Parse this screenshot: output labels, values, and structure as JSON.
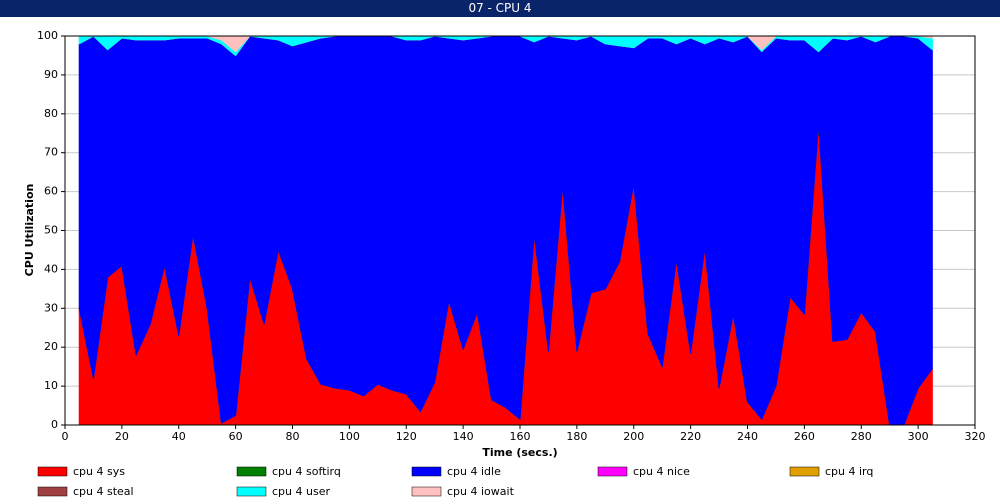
{
  "chart_data": {
    "type": "stacked_area",
    "title": "07 - CPU 4",
    "xlabel": "Time (secs.)",
    "ylabel": "CPU Utilization",
    "xlim": [
      0,
      320
    ],
    "xticks": [
      0,
      20,
      40,
      60,
      80,
      100,
      120,
      140,
      160,
      180,
      200,
      220,
      240,
      260,
      280,
      300,
      320
    ],
    "ylim": [
      0,
      100
    ],
    "yticks": [
      0,
      10,
      20,
      30,
      40,
      50,
      60,
      70,
      80,
      90,
      100
    ],
    "grid": true,
    "x": [
      5,
      10,
      15,
      20,
      25,
      30,
      35,
      40,
      45,
      50,
      55,
      60,
      65,
      70,
      75,
      80,
      85,
      90,
      95,
      100,
      105,
      110,
      115,
      120,
      125,
      130,
      135,
      140,
      145,
      150,
      155,
      160,
      165,
      170,
      175,
      180,
      185,
      190,
      195,
      200,
      205,
      210,
      215,
      220,
      225,
      230,
      235,
      240,
      245,
      250,
      255,
      260,
      265,
      270,
      275,
      280,
      285,
      290,
      295,
      300,
      305
    ],
    "series": [
      {
        "name": "cpu 4 sys",
        "color": "#ff0000",
        "values": [
          30,
          12,
          38,
          41,
          18,
          26,
          41,
          23,
          49,
          30,
          0.5,
          2.5,
          38,
          26,
          45,
          35,
          17,
          10.5,
          9.5,
          9,
          7.5,
          10.5,
          9,
          8,
          3.5,
          11,
          32,
          19.5,
          29,
          6.5,
          4.5,
          1.5,
          49,
          19,
          61.5,
          19,
          34,
          35,
          42,
          62,
          23.5,
          15,
          42.5,
          18.5,
          45.5,
          9.5,
          28.5,
          6,
          1.5,
          10,
          33,
          28.5,
          77.5,
          21.5,
          22,
          29,
          24,
          0,
          0,
          9.5,
          14.5
        ]
      },
      {
        "name": "cpu 4 softirq",
        "color": "#008000",
        "values": [
          0,
          0,
          0,
          0,
          0,
          0,
          0,
          0,
          0,
          0,
          0,
          0,
          0,
          0,
          0,
          0,
          0,
          0,
          0,
          0,
          0,
          0,
          0,
          0,
          0,
          0,
          0,
          0,
          0,
          0,
          0,
          0,
          0,
          0,
          0,
          0,
          0,
          0,
          0,
          0,
          0,
          0,
          0,
          0,
          0,
          0,
          0,
          0,
          0,
          0,
          0,
          0,
          0,
          0,
          0,
          0,
          0,
          0,
          0,
          0,
          0
        ]
      },
      {
        "name": "cpu 4 idle",
        "color": "#0000ff",
        "values": [
          68,
          88,
          58.5,
          58.5,
          81,
          73,
          58,
          76.5,
          50.5,
          69.5,
          97.5,
          92.5,
          62,
          73.5,
          54,
          62.5,
          81.5,
          89,
          90.5,
          91,
          92.5,
          89.5,
          91,
          91,
          95.5,
          89,
          67.5,
          79.5,
          70.5,
          93.5,
          95.5,
          98.5,
          49.5,
          81,
          38,
          80,
          66,
          63,
          55.5,
          35,
          76,
          84.5,
          55.5,
          81,
          52.5,
          90,
          70,
          94,
          94.5,
          89.5,
          66,
          70.5,
          18.5,
          78,
          77,
          71,
          74.5,
          100,
          100,
          90,
          82
        ]
      },
      {
        "name": "cpu 4 nice",
        "color": "#ff00ff",
        "values": [
          0,
          0,
          0,
          0,
          0,
          0,
          0,
          0,
          0,
          0,
          0,
          0,
          0,
          0,
          0,
          0,
          0,
          0,
          0,
          0,
          0,
          0,
          0,
          0,
          0,
          0,
          0,
          0,
          0,
          0,
          0,
          0,
          0,
          0,
          0,
          0,
          0,
          0,
          0,
          0,
          0,
          0,
          0,
          0,
          0,
          0,
          0,
          0,
          0,
          0,
          0,
          0,
          0,
          0,
          0,
          0,
          0,
          0,
          0,
          0,
          0
        ]
      },
      {
        "name": "cpu 4 irq",
        "color": "#e0a000",
        "values": [
          0,
          0,
          0,
          0,
          0,
          0,
          0,
          0,
          0,
          0,
          0,
          0,
          0,
          0,
          0,
          0,
          0,
          0,
          0,
          0,
          0,
          0,
          0,
          0,
          0,
          0,
          0,
          0,
          0,
          0,
          0,
          0,
          0,
          0,
          0,
          0,
          0,
          0,
          0,
          0,
          0,
          0,
          0,
          0,
          0,
          0,
          0,
          0,
          0,
          0,
          0,
          0,
          0,
          0,
          0,
          0,
          0,
          0,
          0,
          0,
          0
        ]
      },
      {
        "name": "cpu 4 steal",
        "color": "#a04040",
        "values": [
          0,
          0,
          0,
          0,
          0,
          0,
          0,
          0,
          0,
          0,
          0,
          0,
          0,
          0,
          0,
          0,
          0,
          0,
          0,
          0,
          0,
          0,
          0,
          0,
          0,
          0,
          0,
          0,
          0,
          0,
          0,
          0,
          0,
          0,
          0,
          0,
          0,
          0,
          0,
          0,
          0,
          0,
          0,
          0,
          0,
          0,
          0,
          0,
          0,
          0,
          0,
          0,
          0,
          0,
          0,
          0,
          0,
          0,
          0,
          0,
          0
        ]
      },
      {
        "name": "cpu 4 user",
        "color": "#00ffff",
        "values": [
          2,
          0,
          3.5,
          0.5,
          1,
          1,
          1,
          0.5,
          0.5,
          0.5,
          1,
          1,
          0,
          0.5,
          1,
          2.5,
          1.5,
          0.5,
          0,
          0,
          0,
          0,
          0,
          1,
          1,
          0,
          0.5,
          1,
          0.5,
          0,
          0,
          0,
          1.5,
          0,
          0.5,
          1,
          0,
          2,
          2.5,
          3,
          0.5,
          0.5,
          2,
          0.5,
          2,
          0.5,
          1.5,
          0,
          0.5,
          0.5,
          1,
          1,
          4,
          0.5,
          1,
          0,
          1.5,
          0,
          0,
          0.5,
          3
        ]
      },
      {
        "name": "cpu 4 iowait",
        "color": "#ffc0c0",
        "values": [
          0,
          0,
          0,
          0,
          0,
          0,
          0,
          0,
          0,
          0,
          1,
          4,
          0,
          0,
          0,
          0,
          0,
          0,
          0,
          0,
          0,
          0,
          0,
          0,
          0,
          0,
          0,
          0,
          0,
          0,
          0,
          0,
          0,
          0,
          0,
          0,
          0,
          0,
          0,
          0,
          0,
          0,
          0,
          0,
          0,
          0,
          0,
          0,
          3.5,
          0,
          0,
          0,
          0,
          0,
          0,
          0,
          0,
          0,
          0,
          0,
          0.5
        ]
      }
    ]
  }
}
